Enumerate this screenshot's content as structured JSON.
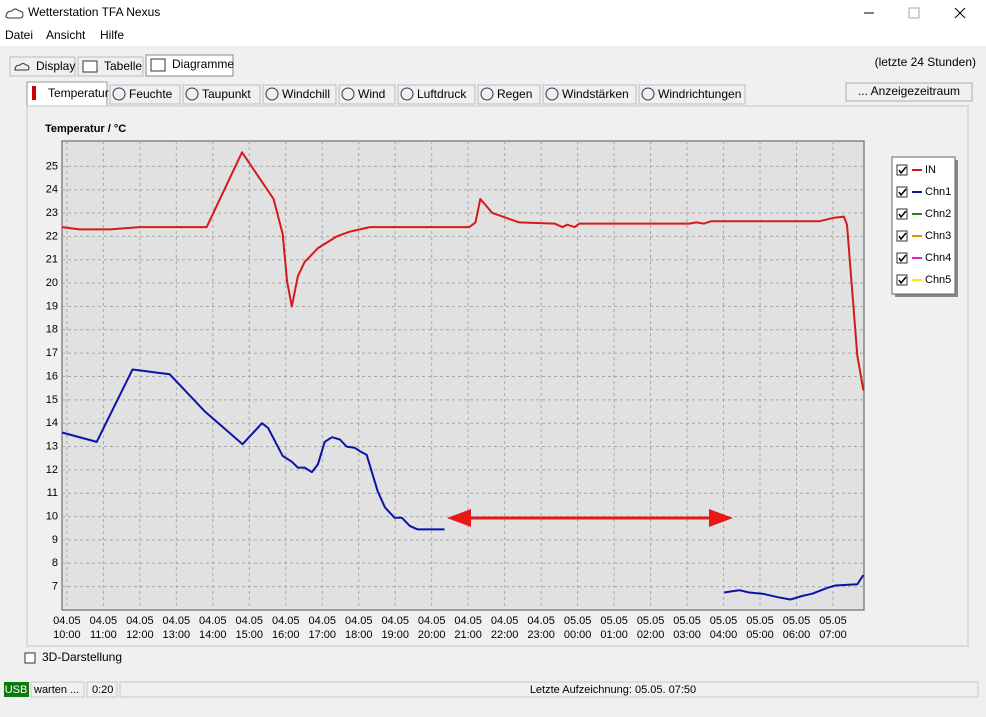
{
  "window": {
    "title": "Wetterstation TFA Nexus"
  },
  "menu": [
    "Datei",
    "Ansicht",
    "Hilfe"
  ],
  "tabs": [
    "Display",
    "Tabelle",
    "Diagramme"
  ],
  "range_note": "(letzte 24 Stunden)",
  "subtabs": [
    "Temperatur",
    "Feuchte",
    "Taupunkt",
    "Windchill",
    "Wind",
    "Luftdruck",
    "Regen",
    "Windstärken",
    "Windrichtungen"
  ],
  "button": "... Anzeigezeitraum",
  "chart_data": {
    "type": "line",
    "title": "Temperatur / °C",
    "xlim": [
      "04.05 09:52",
      "05.05 07:51"
    ],
    "xticks": [
      {
        "date": "04.05",
        "time": "10:00"
      },
      {
        "date": "04.05",
        "time": "11:00"
      },
      {
        "date": "04.05",
        "time": "12:00"
      },
      {
        "date": "04.05",
        "time": "13:00"
      },
      {
        "date": "04.05",
        "time": "14:00"
      },
      {
        "date": "04.05",
        "time": "15:00"
      },
      {
        "date": "04.05",
        "time": "16:00"
      },
      {
        "date": "04.05",
        "time": "17:00"
      },
      {
        "date": "04.05",
        "time": "18:00"
      },
      {
        "date": "04.05",
        "time": "19:00"
      },
      {
        "date": "04.05",
        "time": "20:00"
      },
      {
        "date": "04.05",
        "time": "21:00"
      },
      {
        "date": "04.05",
        "time": "22:00"
      },
      {
        "date": "04.05",
        "time": "23:00"
      },
      {
        "date": "05.05",
        "time": "00:00"
      },
      {
        "date": "05.05",
        "time": "01:00"
      },
      {
        "date": "05.05",
        "time": "02:00"
      },
      {
        "date": "05.05",
        "time": "03:00"
      },
      {
        "date": "05.05",
        "time": "04:00"
      },
      {
        "date": "05.05",
        "time": "05:00"
      },
      {
        "date": "05.05",
        "time": "06:00"
      },
      {
        "date": "05.05",
        "time": "07:00"
      }
    ],
    "ylim": [
      6,
      26
    ],
    "yticks": [
      7,
      8,
      9,
      10,
      11,
      12,
      13,
      14,
      15,
      16,
      17,
      18,
      19,
      20,
      21,
      22,
      23,
      24,
      25
    ],
    "grid": true,
    "legend": "right",
    "series": [
      {
        "name": "IN",
        "color": "#d41a1a",
        "x": [
          "04.05 09:52",
          "04.05 10:21",
          "04.05 11:11",
          "04.05 12:00",
          "04.05 13:50",
          "04.05 14:48",
          "04.05 15:40",
          "04.05 15:55",
          "04.05 16:02",
          "04.05 16:10",
          "04.05 16:20",
          "04.05 16:31",
          "04.05 16:53",
          "04.05 17:24",
          "04.05 17:45",
          "04.05 18:02",
          "04.05 18:18",
          "04.05 21:02",
          "04.05 21:12",
          "04.05 21:20",
          "04.05 21:40",
          "04.05 22:24",
          "04.05 23:22",
          "04.05 23:35",
          "04.05 23:43",
          "04.05 23:55",
          "05.05 00:03",
          "05.05 03:04",
          "05.05 03:15",
          "05.05 03:28",
          "05.05 03:40",
          "05.05 06:38",
          "05.05 07:02",
          "05.05 07:18",
          "05.05 07:23",
          "05.05 07:40",
          "05.05 07:50"
        ],
        "values": [
          22.4,
          22.3,
          22.3,
          22.4,
          22.4,
          25.6,
          23.6,
          22.1,
          20.1,
          19.0,
          20.3,
          20.9,
          21.5,
          22.0,
          22.2,
          22.3,
          22.4,
          22.4,
          22.6,
          23.6,
          23.0,
          22.6,
          22.55,
          22.4,
          22.5,
          22.4,
          22.55,
          22.55,
          22.6,
          22.55,
          22.65,
          22.65,
          22.8,
          22.85,
          22.5,
          16.9,
          15.4
        ]
      },
      {
        "name": "Chn1",
        "color": "#0b14a8",
        "x": [
          "04.05 09:52",
          "04.05 10:49",
          "04.05 11:48",
          "04.05 12:49",
          "04.05 13:47",
          "04.05 14:49",
          "04.05 15:21",
          "04.05 15:31",
          "04.05 15:55",
          "04.05 16:10",
          "04.05 16:20",
          "04.05 16:31",
          "04.05 16:43",
          "04.05 16:53",
          "04.05 17:04",
          "04.05 17:16",
          "04.05 17:29",
          "04.05 17:40",
          "04.05 17:53",
          "04.05 18:02",
          "04.05 18:13",
          "04.05 18:31",
          "04.05 18:43",
          "04.05 18:59",
          "04.05 19:11",
          "04.05 19:24",
          "04.05 19:37",
          "04.05 20:21",
          "05.05 02:00",
          "05.05 04:01",
          "05.05 04:14",
          "05.05 04:26",
          "05.05 04:42",
          "05.05 05:04",
          "05.05 05:29",
          "05.05 05:50",
          "05.05 06:09",
          "05.05 06:26",
          "05.05 06:51",
          "05.05 07:04",
          "05.05 07:40",
          "05.05 07:50"
        ],
        "values": [
          13.6,
          13.2,
          16.3,
          16.1,
          14.5,
          13.1,
          14.0,
          13.8,
          12.6,
          12.35,
          12.1,
          12.1,
          11.9,
          12.25,
          13.2,
          13.4,
          13.3,
          13.0,
          12.95,
          12.8,
          12.65,
          11.1,
          10.4,
          9.95,
          9.95,
          9.6,
          9.45,
          9.45,
          null,
          6.75,
          6.8,
          6.85,
          6.75,
          6.7,
          6.55,
          6.45,
          6.6,
          6.7,
          6.95,
          7.05,
          7.1,
          7.5
        ]
      },
      {
        "name": "Chn2",
        "color": "#1a8a1a",
        "x": [],
        "values": []
      },
      {
        "name": "Chn3",
        "color": "#f08a00",
        "x": [],
        "values": []
      },
      {
        "name": "Chn4",
        "color": "#e020e0",
        "x": [],
        "values": []
      },
      {
        "name": "Chn5",
        "color": "#f0f000",
        "x": [],
        "values": []
      }
    ]
  },
  "checkbox": "3D-Darstellung",
  "status": {
    "port": "USB",
    "state": "warten ...",
    "timer": "0:20",
    "last_record": "Letzte Aufzeichnung: 05.05. 07:50"
  }
}
